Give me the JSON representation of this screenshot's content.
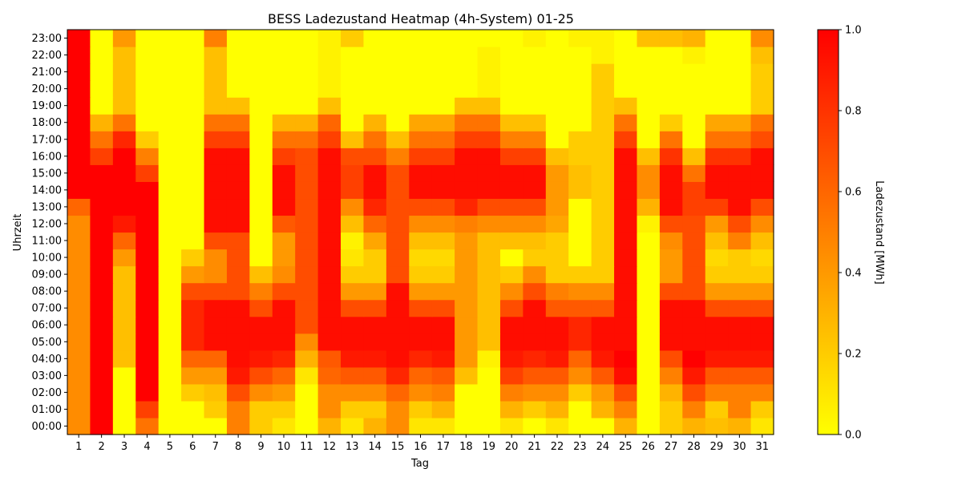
{
  "chart_data": {
    "type": "heatmap",
    "title": "BESS Ladezustand Heatmap (4h-System) 01-25",
    "xlabel": "Tag",
    "ylabel": "Uhrzeit",
    "x": [
      "1",
      "2",
      "3",
      "4",
      "5",
      "6",
      "7",
      "8",
      "9",
      "10",
      "11",
      "12",
      "13",
      "14",
      "15",
      "16",
      "17",
      "18",
      "19",
      "20",
      "21",
      "22",
      "23",
      "24",
      "25",
      "26",
      "27",
      "28",
      "29",
      "30",
      "31"
    ],
    "y": [
      "00:00",
      "01:00",
      "02:00",
      "03:00",
      "04:00",
      "05:00",
      "06:00",
      "07:00",
      "08:00",
      "09:00",
      "10:00",
      "11:00",
      "12:00",
      "13:00",
      "14:00",
      "15:00",
      "16:00",
      "17:00",
      "18:00",
      "19:00",
      "20:00",
      "21:00",
      "22:00",
      "23:00"
    ],
    "value_range": [
      0,
      1
    ],
    "colorbar": {
      "label": "Ladezustand [MWh]",
      "ticks": [
        "0.0",
        "0.2",
        "0.4",
        "0.6",
        "0.8",
        "1.0"
      ],
      "colormap": "autumn_r",
      "color_low": "#ffff00",
      "color_high": "#ff0000"
    },
    "values": [
      [
        0.45,
        1.0,
        0.0,
        0.55,
        0.0,
        0.0,
        0.0,
        0.5,
        0.2,
        0.1,
        0.0,
        0.3,
        0.1,
        0.3,
        0.45,
        0.1,
        0.1,
        0.0,
        0.0,
        0.1,
        0.0,
        0.1,
        0.0,
        0.0,
        0.3,
        0.0,
        0.2,
        0.3,
        0.25,
        0.3,
        0.1
      ],
      [
        0.45,
        1.0,
        0.0,
        0.75,
        0.0,
        0.0,
        0.2,
        0.5,
        0.2,
        0.2,
        0.0,
        0.45,
        0.2,
        0.2,
        0.45,
        0.2,
        0.3,
        0.0,
        0.0,
        0.3,
        0.2,
        0.3,
        0.0,
        0.3,
        0.5,
        0.0,
        0.2,
        0.5,
        0.2,
        0.5,
        0.2
      ],
      [
        0.45,
        1.0,
        0.0,
        1.0,
        0.0,
        0.2,
        0.25,
        0.7,
        0.45,
        0.4,
        0.0,
        0.45,
        0.45,
        0.45,
        0.6,
        0.45,
        0.5,
        0.0,
        0.0,
        0.5,
        0.45,
        0.45,
        0.2,
        0.4,
        0.7,
        0.0,
        0.3,
        0.7,
        0.5,
        0.5,
        0.5
      ],
      [
        0.45,
        1.0,
        0.0,
        1.0,
        0.0,
        0.4,
        0.4,
        0.9,
        0.7,
        0.6,
        0.1,
        0.6,
        0.65,
        0.65,
        0.85,
        0.6,
        0.65,
        0.25,
        0.0,
        0.75,
        0.65,
        0.65,
        0.45,
        0.65,
        0.95,
        0.0,
        0.5,
        0.9,
        0.65,
        0.65,
        0.65
      ],
      [
        0.45,
        1.0,
        0.25,
        1.0,
        0.0,
        0.6,
        0.6,
        0.95,
        0.9,
        0.85,
        0.3,
        0.65,
        0.9,
        0.9,
        0.95,
        0.85,
        0.9,
        0.4,
        0.05,
        0.9,
        0.85,
        0.9,
        0.6,
        0.9,
        1.0,
        0.0,
        0.7,
        1.0,
        0.9,
        0.9,
        0.9
      ],
      [
        0.45,
        1.0,
        0.25,
        1.0,
        0.0,
        0.85,
        0.95,
        0.95,
        0.95,
        0.95,
        0.45,
        0.95,
        0.95,
        0.95,
        0.95,
        0.95,
        0.95,
        0.4,
        0.25,
        0.95,
        0.95,
        0.95,
        0.85,
        0.95,
        0.95,
        0.0,
        0.95,
        0.95,
        0.95,
        0.95,
        0.95
      ],
      [
        0.45,
        1.0,
        0.25,
        1.0,
        0.0,
        0.85,
        0.95,
        0.95,
        0.95,
        0.95,
        0.7,
        0.95,
        0.95,
        0.95,
        0.95,
        0.95,
        0.95,
        0.4,
        0.25,
        0.95,
        0.95,
        0.95,
        0.85,
        0.95,
        0.95,
        0.0,
        0.95,
        0.95,
        0.95,
        0.95,
        0.95
      ],
      [
        0.45,
        1.0,
        0.25,
        1.0,
        0.0,
        0.85,
        0.95,
        0.95,
        0.7,
        0.95,
        0.7,
        0.95,
        0.7,
        0.7,
        0.95,
        0.7,
        0.7,
        0.4,
        0.25,
        0.7,
        0.95,
        0.65,
        0.65,
        0.65,
        0.95,
        0.0,
        0.95,
        0.95,
        0.7,
        0.7,
        0.7
      ],
      [
        0.45,
        1.0,
        0.25,
        1.0,
        0.0,
        0.7,
        0.7,
        0.7,
        0.5,
        0.7,
        0.7,
        0.95,
        0.4,
        0.4,
        0.95,
        0.4,
        0.4,
        0.4,
        0.25,
        0.45,
        0.7,
        0.5,
        0.45,
        0.45,
        0.95,
        0.0,
        0.7,
        0.7,
        0.4,
        0.4,
        0.4
      ],
      [
        0.45,
        1.0,
        0.25,
        1.0,
        0.0,
        0.4,
        0.45,
        0.7,
        0.25,
        0.45,
        0.7,
        0.95,
        0.2,
        0.2,
        0.7,
        0.2,
        0.2,
        0.4,
        0.25,
        0.2,
        0.45,
        0.2,
        0.2,
        0.2,
        0.95,
        0.0,
        0.4,
        0.7,
        0.2,
        0.2,
        0.2
      ],
      [
        0.45,
        1.0,
        0.4,
        1.0,
        0.0,
        0.2,
        0.45,
        0.7,
        0.0,
        0.4,
        0.7,
        0.95,
        0.1,
        0.2,
        0.7,
        0.15,
        0.15,
        0.4,
        0.25,
        0.0,
        0.2,
        0.2,
        0.0,
        0.2,
        0.95,
        0.0,
        0.4,
        0.7,
        0.15,
        0.2,
        0.15
      ],
      [
        0.45,
        1.0,
        0.6,
        1.0,
        0.0,
        0.0,
        0.7,
        0.7,
        0.0,
        0.4,
        0.7,
        0.95,
        0.05,
        0.35,
        0.7,
        0.25,
        0.25,
        0.4,
        0.25,
        0.25,
        0.25,
        0.2,
        0.0,
        0.2,
        0.95,
        0.0,
        0.45,
        0.7,
        0.25,
        0.5,
        0.25
      ],
      [
        0.45,
        1.0,
        0.9,
        1.0,
        0.0,
        0.0,
        0.95,
        0.95,
        0.0,
        0.65,
        0.7,
        0.95,
        0.25,
        0.6,
        0.7,
        0.45,
        0.45,
        0.5,
        0.45,
        0.45,
        0.45,
        0.35,
        0.0,
        0.2,
        0.95,
        0.05,
        0.7,
        0.7,
        0.4,
        0.7,
        0.45
      ],
      [
        0.6,
        1.0,
        1.0,
        1.0,
        0.0,
        0.0,
        0.95,
        0.95,
        0.0,
        0.95,
        0.7,
        0.95,
        0.45,
        0.85,
        0.7,
        0.7,
        0.7,
        0.85,
        0.7,
        0.7,
        0.7,
        0.4,
        0.0,
        0.2,
        0.95,
        0.3,
        0.95,
        0.75,
        0.75,
        0.95,
        0.7
      ],
      [
        1.0,
        1.0,
        1.0,
        1.0,
        0.0,
        0.0,
        0.95,
        0.95,
        0.0,
        0.95,
        0.7,
        0.95,
        0.75,
        0.95,
        0.7,
        0.95,
        0.95,
        0.95,
        0.95,
        0.95,
        0.95,
        0.4,
        0.25,
        0.2,
        0.95,
        0.45,
        0.95,
        0.75,
        0.95,
        0.95,
        0.95
      ],
      [
        1.0,
        1.0,
        1.0,
        0.75,
        0.0,
        0.0,
        0.95,
        0.95,
        0.0,
        0.95,
        0.7,
        0.95,
        0.75,
        0.95,
        0.7,
        0.95,
        0.95,
        0.95,
        0.95,
        0.95,
        0.95,
        0.4,
        0.25,
        0.2,
        0.95,
        0.45,
        0.95,
        0.55,
        0.95,
        0.95,
        0.95
      ],
      [
        1.0,
        0.75,
        1.0,
        0.5,
        0.0,
        0.0,
        0.95,
        0.95,
        0.0,
        0.75,
        0.7,
        0.95,
        0.7,
        0.7,
        0.5,
        0.75,
        0.75,
        0.95,
        0.95,
        0.75,
        0.75,
        0.25,
        0.2,
        0.2,
        0.95,
        0.25,
        0.8,
        0.25,
        0.8,
        0.8,
        0.95
      ],
      [
        1.0,
        0.55,
        0.85,
        0.2,
        0.0,
        0.0,
        0.75,
        0.75,
        0.0,
        0.55,
        0.55,
        0.75,
        0.25,
        0.55,
        0.25,
        0.55,
        0.55,
        0.75,
        0.75,
        0.5,
        0.5,
        0.0,
        0.2,
        0.2,
        0.75,
        0.0,
        0.55,
        0.0,
        0.55,
        0.55,
        0.7
      ],
      [
        1.0,
        0.3,
        0.55,
        0.0,
        0.0,
        0.0,
        0.55,
        0.55,
        0.0,
        0.3,
        0.3,
        0.6,
        0.0,
        0.3,
        0.0,
        0.35,
        0.35,
        0.55,
        0.55,
        0.25,
        0.25,
        0.0,
        0.0,
        0.2,
        0.55,
        0.0,
        0.2,
        0.0,
        0.35,
        0.35,
        0.55
      ],
      [
        1.0,
        0.0,
        0.25,
        0.0,
        0.0,
        0.0,
        0.25,
        0.25,
        0.0,
        0.0,
        0.0,
        0.25,
        0.0,
        0.0,
        0.0,
        0.0,
        0.0,
        0.25,
        0.25,
        0.0,
        0.0,
        0.0,
        0.0,
        0.2,
        0.25,
        0.0,
        0.0,
        0.0,
        0.0,
        0.0,
        0.2
      ],
      [
        1.0,
        0.0,
        0.25,
        0.0,
        0.0,
        0.0,
        0.25,
        0.0,
        0.0,
        0.0,
        0.0,
        0.05,
        0.0,
        0.0,
        0.0,
        0.0,
        0.0,
        0.0,
        0.05,
        0.0,
        0.0,
        0.0,
        0.0,
        0.2,
        0.0,
        0.0,
        0.0,
        0.0,
        0.0,
        0.0,
        0.2
      ],
      [
        1.0,
        0.0,
        0.25,
        0.0,
        0.0,
        0.0,
        0.25,
        0.0,
        0.0,
        0.0,
        0.0,
        0.05,
        0.0,
        0.0,
        0.0,
        0.0,
        0.0,
        0.0,
        0.05,
        0.0,
        0.0,
        0.0,
        0.0,
        0.2,
        0.0,
        0.0,
        0.0,
        0.0,
        0.0,
        0.0,
        0.2
      ],
      [
        1.0,
        0.0,
        0.25,
        0.0,
        0.0,
        0.0,
        0.25,
        0.0,
        0.0,
        0.0,
        0.0,
        0.05,
        0.0,
        0.0,
        0.0,
        0.0,
        0.0,
        0.0,
        0.05,
        0.0,
        0.0,
        0.0,
        0.0,
        0.05,
        0.0,
        0.0,
        0.0,
        0.05,
        0.0,
        0.0,
        0.25
      ],
      [
        1.0,
        0.0,
        0.4,
        0.0,
        0.0,
        0.0,
        0.5,
        0.0,
        0.0,
        0.0,
        0.0,
        0.05,
        0.2,
        0.0,
        0.0,
        0.0,
        0.0,
        0.0,
        0.0,
        0.0,
        0.05,
        0.0,
        0.05,
        0.05,
        0.0,
        0.25,
        0.25,
        0.3,
        0.0,
        0.0,
        0.45
      ]
    ]
  }
}
